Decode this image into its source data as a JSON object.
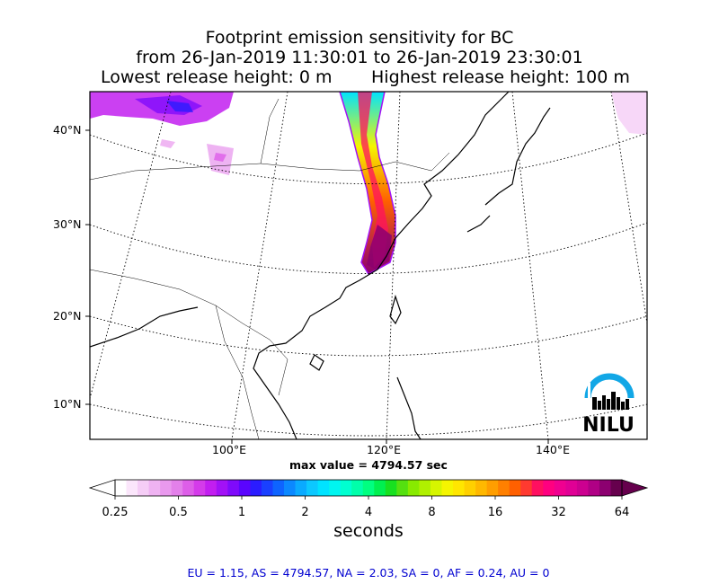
{
  "title": {
    "line1": "Footprint emission sensitivity for BC",
    "line2": "from 26-Jan-2019 11:30:01 to 26-Jan-2019 23:30:01",
    "lowest": "Lowest release height: 0 m",
    "highest": "Highest release height: 100 m"
  },
  "map": {
    "lat_labels": [
      "40°N",
      "30°N",
      "20°N",
      "10°N"
    ],
    "lon_labels": [
      "100°E",
      "120°E",
      "140°E"
    ],
    "max_value": "max value = 4794.57 sec",
    "logo_text": "NILU"
  },
  "colorbar": {
    "ticks": [
      "0.25",
      "0.5",
      "1",
      "2",
      "4",
      "8",
      "16",
      "32",
      "64"
    ],
    "label": "seconds",
    "colors": [
      "#ffffff",
      "#fbe6fb",
      "#f5cdf6",
      "#efb3f2",
      "#e999ee",
      "#e380ea",
      "#dd5ee8",
      "#d43bea",
      "#c21ef0",
      "#a211f6",
      "#7f0afb",
      "#5a05fe",
      "#2b1cff",
      "#1a40ff",
      "#0e64ff",
      "#0b88ff",
      "#0aaaff",
      "#0cc8ff",
      "#00e3ff",
      "#00f5f0",
      "#00ffd0",
      "#00ffaa",
      "#00ff80",
      "#00f050",
      "#18e020",
      "#55e010",
      "#88ea00",
      "#b0f000",
      "#d6f500",
      "#f5f500",
      "#ffe600",
      "#ffd000",
      "#ffb800",
      "#ff9e00",
      "#ff8000",
      "#ff6000",
      "#ff3a30",
      "#ff1060",
      "#ff0080",
      "#f00090",
      "#e00095",
      "#cc0090",
      "#b00085",
      "#8c0070",
      "#66004d"
    ]
  },
  "footer": "EU = 1.15,  AS = 4794.57,  NA = 2.03,  SA = 0,  AF = 0.24,  AU = 0"
}
